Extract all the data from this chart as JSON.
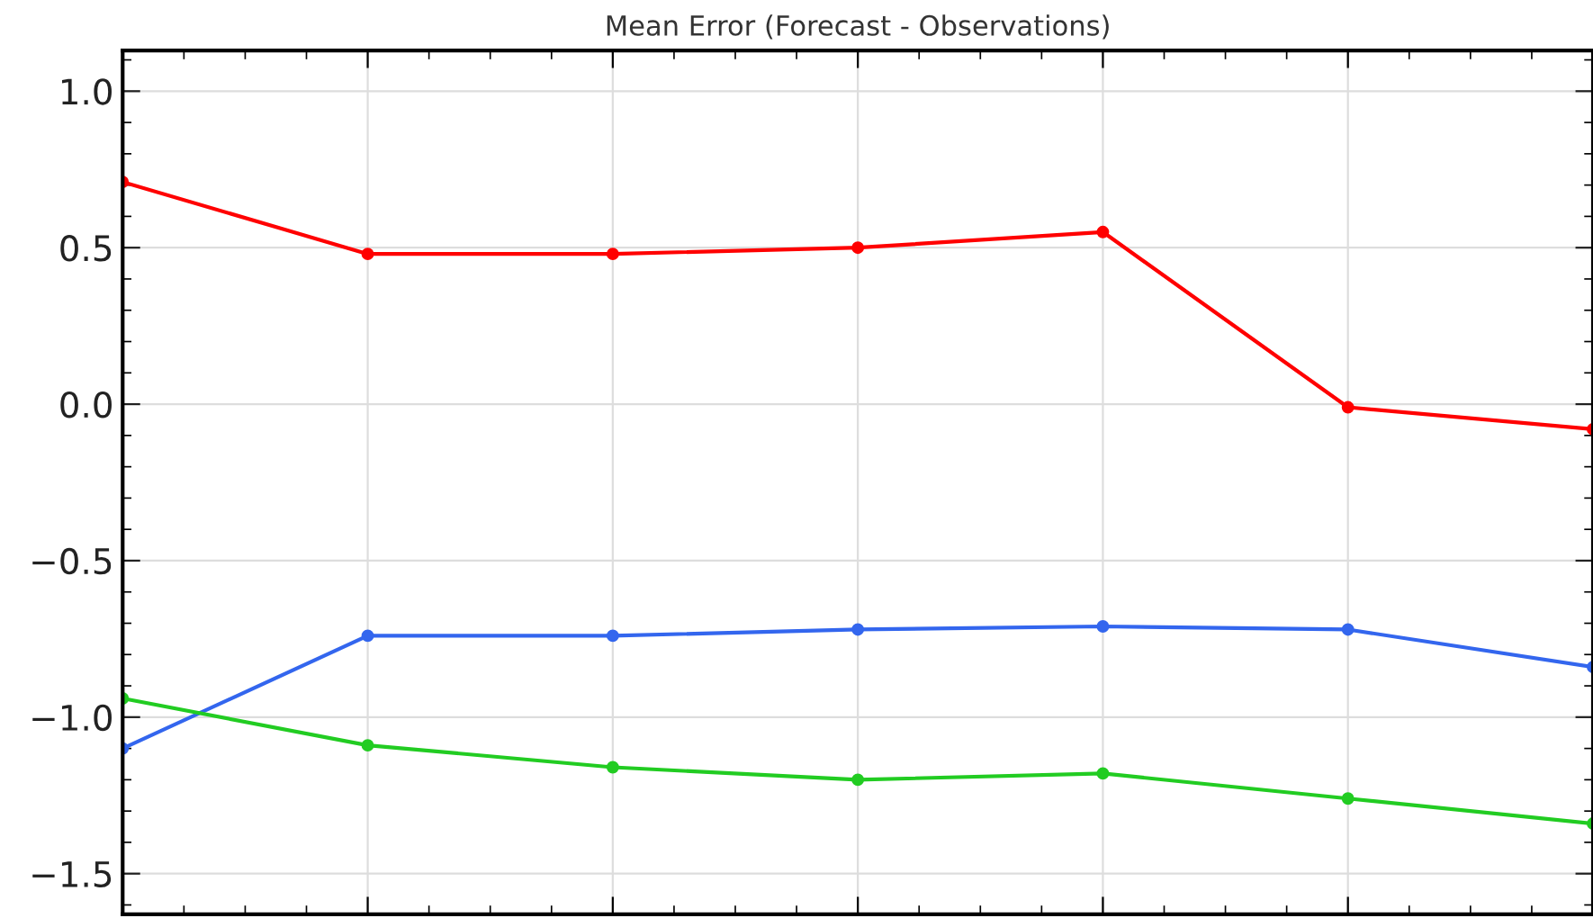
{
  "chart_data": {
    "type": "line",
    "title": "Mean Error (Forecast - Observations)",
    "categories": [
      null,
      null,
      null,
      null,
      null,
      null,
      null
    ],
    "series": [
      {
        "color": "#ff0000",
        "values": [
          0.71,
          0.48,
          0.48,
          0.5,
          0.55,
          -0.01,
          -0.08
        ]
      },
      {
        "color": "#3366ee",
        "values": [
          -1.1,
          -0.74,
          -0.74,
          -0.72,
          -0.71,
          -0.72,
          -0.84
        ]
      },
      {
        "color": "#22cc22",
        "values": [
          -0.94,
          -1.09,
          -1.16,
          -1.2,
          -1.18,
          -1.26,
          -1.34
        ]
      }
    ],
    "ylim": [
      -1.63,
      1.13
    ],
    "yticks": [
      {
        "value": -1.5,
        "label": "−1.5"
      },
      {
        "value": -1.0,
        "label": "−1.0"
      },
      {
        "value": -0.5,
        "label": "−0.5"
      },
      {
        "value": 0,
        "label": "0.0"
      },
      {
        "value": 0.5,
        "label": "0.5"
      },
      {
        "value": 1,
        "label": "1.0"
      }
    ],
    "tick_labels": "y",
    "grid": true,
    "marker": "circle",
    "line_style": "solid"
  }
}
